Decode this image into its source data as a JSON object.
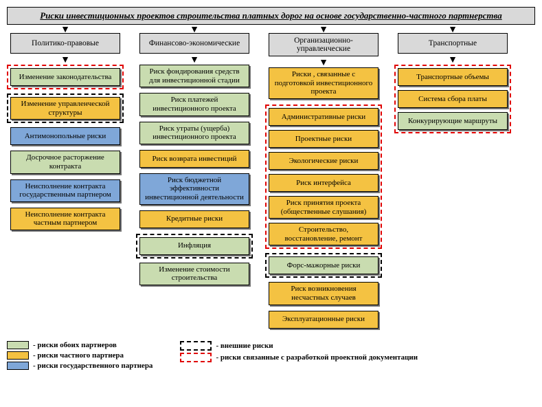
{
  "colors": {
    "both": "#c9dcb0",
    "private": "#f4c242",
    "state": "#7fa7d8",
    "header": "#d9d9d9",
    "redDash": "#e00000",
    "blackDash": "#000000"
  },
  "title": "Риски инвестиционных проектов строительства платных дорог на основе государственно-частного партнерства",
  "columns": [
    {
      "header": "Политико-правовые",
      "items": [
        {
          "label": "Изменение законодательства",
          "color": "both",
          "frame": "red"
        },
        {
          "label": "Изменение управленческой структуры",
          "color": "private",
          "frame": "black"
        },
        {
          "label": "Антимонопольные риски",
          "color": "state"
        },
        {
          "label": "Досрочное расторжение контракта",
          "color": "both"
        },
        {
          "label": "Неисполнение контракта государственным партнером",
          "color": "state"
        },
        {
          "label": "Неисполнение контракта частным партнером",
          "color": "private"
        }
      ]
    },
    {
      "header": "Финансово-экономические",
      "items": [
        {
          "label": "Риск фондирования средств для инвестиционной стадии",
          "color": "both"
        },
        {
          "label": "Риск платежей инвестиционного проекта",
          "color": "both"
        },
        {
          "label": "Риск утраты (ущерба) инвестиционного проекта",
          "color": "both"
        },
        {
          "label": "Риск возврата инвестиций",
          "color": "private"
        },
        {
          "label": "Риск бюджетной эффективности инвестиционной деятельности",
          "color": "state"
        },
        {
          "label": "Кредитные риски",
          "color": "private"
        },
        {
          "label": "Инфляция",
          "color": "both",
          "frame": "black"
        },
        {
          "label": "Изменение стоимости строительства",
          "color": "both"
        }
      ]
    },
    {
      "header": "Организационно-управленческие",
      "items": [
        {
          "label": "Риски , связанные с подготовкой инвестиционного проекта",
          "color": "private"
        },
        {
          "group": "red",
          "children": [
            {
              "label": "Административные риски",
              "color": "private"
            },
            {
              "label": "Проектные риски",
              "color": "private"
            },
            {
              "label": "Экологические риски",
              "color": "private"
            },
            {
              "label": "Риск интерфейса",
              "color": "private"
            },
            {
              "label": "Риск принятия проекта (общественные слушания)",
              "color": "private"
            },
            {
              "label": "Строительство, восстановление, ремонт",
              "color": "private"
            }
          ]
        },
        {
          "label": "Форс-мажорные риски",
          "color": "both",
          "frame": "black"
        },
        {
          "label": "Риск возникновения несчастных случаев",
          "color": "private"
        },
        {
          "label": "Эксплуатационные риски",
          "color": "private"
        }
      ]
    },
    {
      "header": "Транспортные",
      "groupFrame": "red",
      "items": [
        {
          "label": "Транспортные объемы",
          "color": "private"
        },
        {
          "label": "Система сбора платы",
          "color": "private"
        },
        {
          "label": "Конкурирующие маршруты",
          "color": "both"
        }
      ]
    }
  ],
  "legend": {
    "swatches": [
      {
        "color": "both",
        "text": "- риски обоих партнеров"
      },
      {
        "color": "private",
        "text": "- риски частного партнера"
      },
      {
        "color": "state",
        "text": "- риски государственного партнера"
      }
    ],
    "frames": [
      {
        "frame": "black",
        "text": "- внешние риски"
      },
      {
        "frame": "red",
        "text": "- риски связанные с разработкой проектной документации"
      }
    ]
  }
}
